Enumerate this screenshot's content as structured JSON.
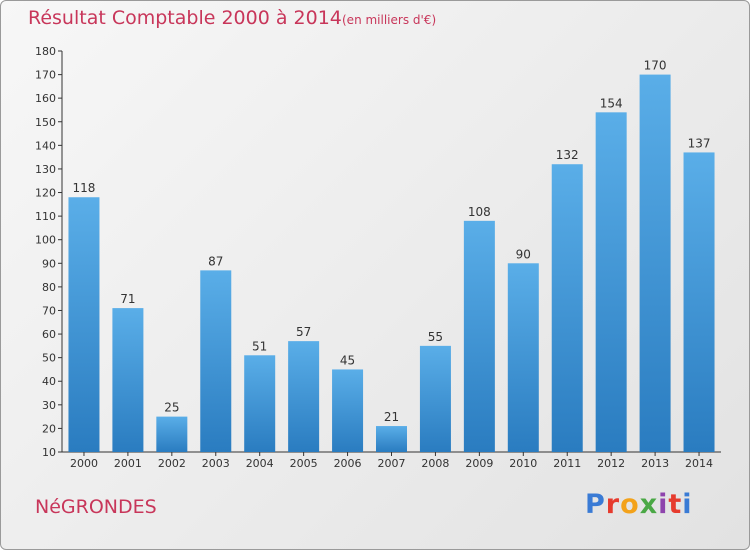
{
  "header": {
    "title": "Résultat Comptable 2000 à 2014",
    "subtitle": "(en milliers d'€)"
  },
  "footer": {
    "place": "NéGRONDES",
    "logo": "Proxiti",
    "logo_colors": [
      "#3a7bd5",
      "#e63b2e",
      "#f3a21a",
      "#4aa845",
      "#8e44ad",
      "#e63b2e",
      "#3a7bd5"
    ]
  },
  "colors": {
    "bar_light": "#5aaee8",
    "bar_dark": "#2a7cc0",
    "title": "#c8365a"
  },
  "chart_data": {
    "type": "bar",
    "categories": [
      "2000",
      "2001",
      "2002",
      "2003",
      "2004",
      "2005",
      "2006",
      "2007",
      "2008",
      "2009",
      "2010",
      "2011",
      "2012",
      "2013",
      "2014"
    ],
    "values": [
      118,
      71,
      25,
      87,
      51,
      57,
      45,
      21,
      55,
      108,
      90,
      132,
      154,
      170,
      137
    ],
    "ylim": [
      10,
      180
    ],
    "yticks": [
      10,
      20,
      30,
      40,
      50,
      60,
      70,
      80,
      90,
      100,
      110,
      120,
      130,
      140,
      150,
      160,
      170,
      180
    ],
    "grid": false,
    "xlabel": "",
    "ylabel": ""
  }
}
